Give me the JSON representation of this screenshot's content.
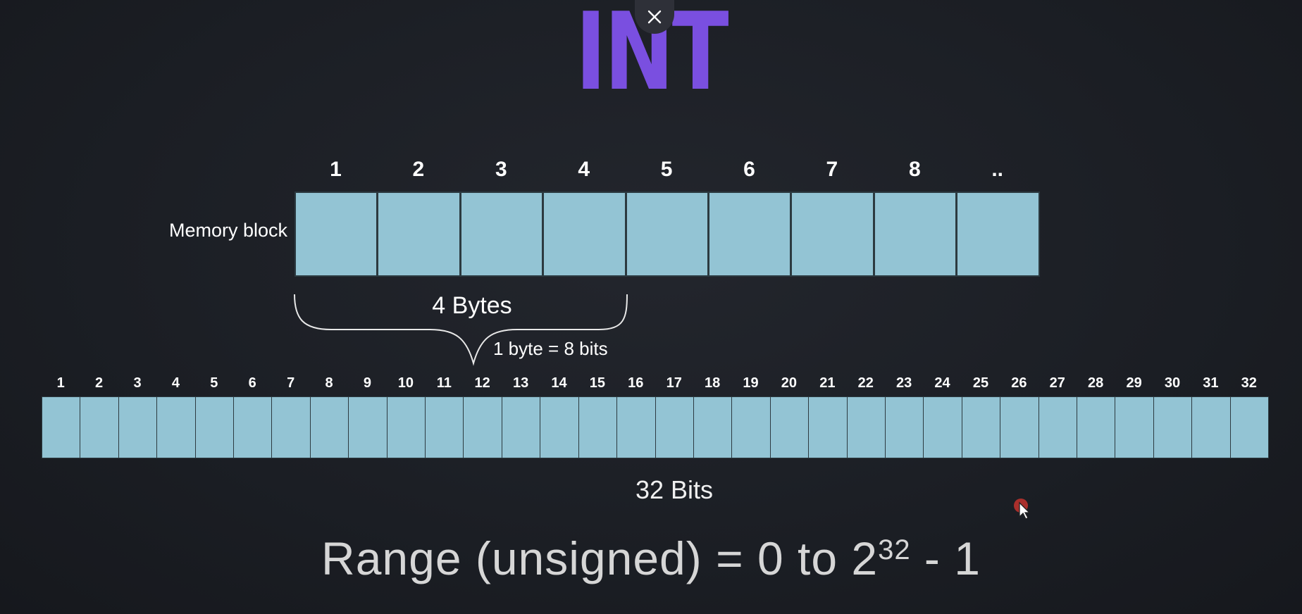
{
  "title": {
    "text": "INT"
  },
  "overlay": {
    "close_icon": "close-icon",
    "cursor_icon": "mouse-cursor-icon"
  },
  "memory_block": {
    "label": "Memory block",
    "byte_numbers": [
      "1",
      "2",
      "3",
      "4",
      "5",
      "6",
      "7",
      "8",
      ".."
    ],
    "brace_label": "4 Bytes",
    "byte_note": "1 byte = 8 bits"
  },
  "bits": {
    "numbers": [
      "1",
      "2",
      "3",
      "4",
      "5",
      "6",
      "7",
      "8",
      "9",
      "10",
      "11",
      "12",
      "13",
      "14",
      "15",
      "16",
      "17",
      "18",
      "19",
      "20",
      "21",
      "22",
      "23",
      "24",
      "25",
      "26",
      "27",
      "28",
      "29",
      "30",
      "31",
      "32"
    ],
    "label": "32 Bits"
  },
  "range": {
    "prefix": "Range (unsigned) = 0 to 2",
    "exponent": "32",
    "suffix": " - 1"
  },
  "colors": {
    "background": "#1b1e24",
    "title": "#7a4fe0",
    "cell_fill": "#93c4d4",
    "cell_border": "#2c3a40",
    "text": "#ffffff",
    "range_text": "#d6d6d6"
  }
}
